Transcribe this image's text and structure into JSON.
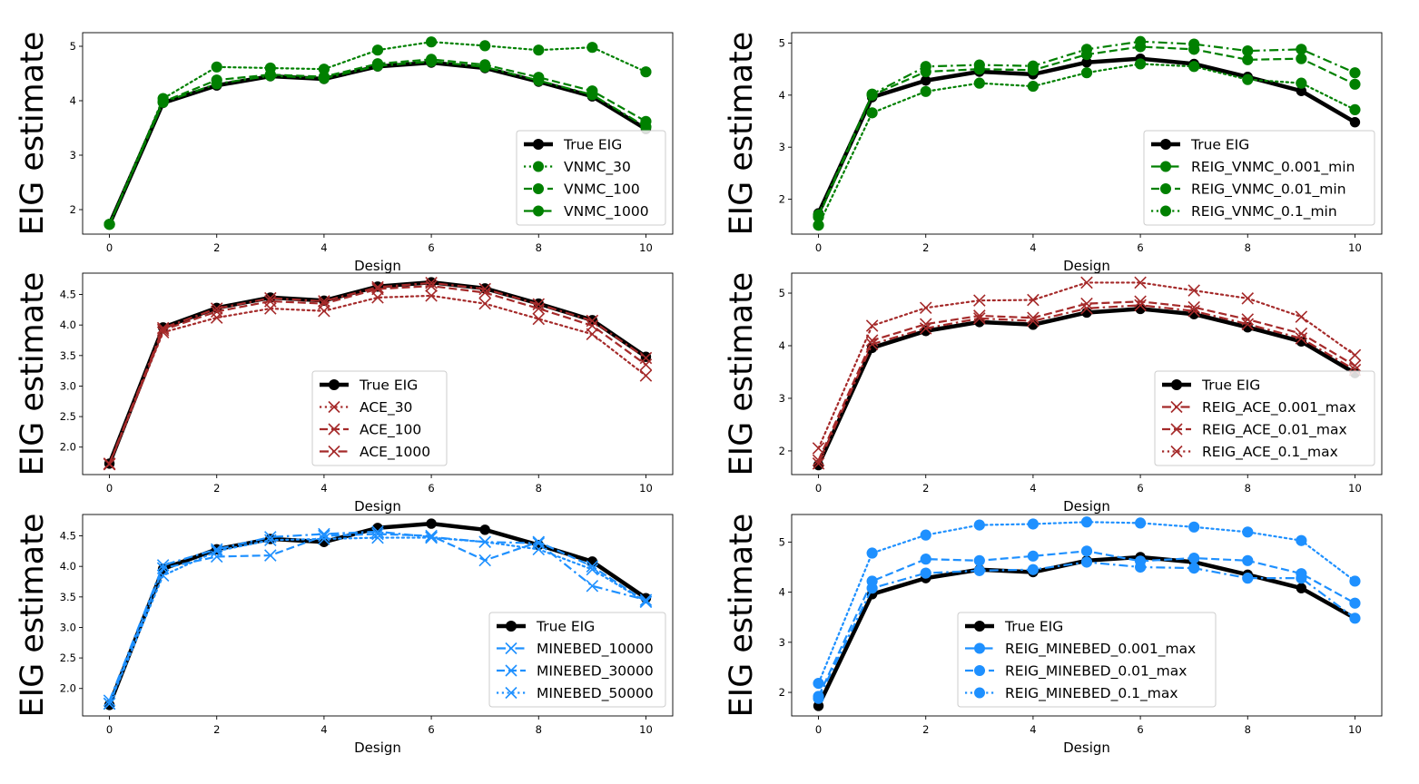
{
  "chart_data": [
    {
      "type": "line",
      "xlabel": "Design",
      "ylabel": "EIG estimate",
      "x": [
        0,
        1,
        2,
        3,
        4,
        5,
        6,
        7,
        8,
        9,
        10
      ],
      "xticks": [
        0,
        2,
        4,
        6,
        8,
        10
      ],
      "xlim": [
        -0.5,
        10.5
      ],
      "yticks": [
        2,
        3,
        4,
        5
      ],
      "ylim": [
        1.55,
        5.25
      ],
      "legend_position": "lower-right",
      "series": [
        {
          "name": "True EIG",
          "values": [
            1.73,
            3.96,
            4.28,
            4.45,
            4.4,
            4.63,
            4.7,
            4.6,
            4.35,
            4.08,
            3.48
          ],
          "color": "#000000",
          "style": "solid",
          "marker": "circle",
          "width": 4.5
        },
        {
          "name": "VNMC_30",
          "values": [
            1.73,
            4.04,
            4.62,
            4.6,
            4.58,
            4.93,
            5.08,
            5.01,
            4.93,
            4.98,
            4.53
          ],
          "color": "#008000",
          "style": "dotted",
          "marker": "circle",
          "width": 2.2
        },
        {
          "name": "VNMC_100",
          "values": [
            1.73,
            3.98,
            4.38,
            4.48,
            4.44,
            4.68,
            4.76,
            4.66,
            4.43,
            4.18,
            3.62
          ],
          "color": "#008000",
          "style": "dashed",
          "marker": "circle",
          "width": 2.2
        },
        {
          "name": "VNMC_1000",
          "values": [
            1.73,
            3.97,
            4.31,
            4.46,
            4.41,
            4.64,
            4.72,
            4.62,
            4.37,
            4.11,
            3.52
          ],
          "color": "#008000",
          "style": "dashdot",
          "marker": "circle",
          "width": 2.2
        }
      ]
    },
    {
      "type": "line",
      "xlabel": "Design",
      "ylabel": "EIG estimate",
      "x": [
        0,
        1,
        2,
        3,
        4,
        5,
        6,
        7,
        8,
        9,
        10
      ],
      "xticks": [
        0,
        2,
        4,
        6,
        8,
        10
      ],
      "xlim": [
        -0.5,
        10.5
      ],
      "yticks": [
        2,
        3,
        4,
        5
      ],
      "ylim": [
        1.33,
        5.2
      ],
      "legend_position": "lower-right",
      "series": [
        {
          "name": "True EIG",
          "values": [
            1.73,
            3.96,
            4.28,
            4.45,
            4.4,
            4.63,
            4.7,
            4.6,
            4.35,
            4.08,
            3.48
          ],
          "color": "#000000",
          "style": "solid",
          "marker": "circle",
          "width": 4.5
        },
        {
          "name": "REIG_VNMC_0.001_min",
          "values": [
            1.7,
            4.02,
            4.55,
            4.58,
            4.56,
            4.88,
            5.03,
            4.98,
            4.85,
            4.88,
            4.43
          ],
          "color": "#008000",
          "style": "dashdot",
          "marker": "circle",
          "width": 2.2
        },
        {
          "name": "REIG_VNMC_0.01_min",
          "values": [
            1.66,
            4.0,
            4.45,
            4.5,
            4.48,
            4.78,
            4.93,
            4.88,
            4.68,
            4.7,
            4.21
          ],
          "color": "#008000",
          "style": "dashed",
          "marker": "circle",
          "width": 2.2
        },
        {
          "name": "REIG_VNMC_0.1_min",
          "values": [
            1.5,
            3.66,
            4.07,
            4.23,
            4.17,
            4.43,
            4.6,
            4.55,
            4.3,
            4.23,
            3.72
          ],
          "color": "#008000",
          "style": "dotted",
          "marker": "circle",
          "width": 2.2
        }
      ]
    },
    {
      "type": "line",
      "xlabel": "Design",
      "ylabel": "EIG estimate",
      "x": [
        0,
        1,
        2,
        3,
        4,
        5,
        6,
        7,
        8,
        9,
        10
      ],
      "xticks": [
        0,
        2,
        4,
        6,
        8,
        10
      ],
      "xlim": [
        -0.5,
        10.5
      ],
      "yticks": [
        2.0,
        2.5,
        3.0,
        3.5,
        4.0,
        4.5
      ],
      "yticklabels": [
        "2.0",
        "2.5",
        "3.0",
        "3.5",
        "4.0",
        "4.5"
      ],
      "ylim": [
        1.55,
        4.85
      ],
      "legend_position": "lower-center",
      "series": [
        {
          "name": "True EIG",
          "values": [
            1.73,
            3.96,
            4.28,
            4.45,
            4.4,
            4.63,
            4.7,
            4.6,
            4.35,
            4.08,
            3.48
          ],
          "color": "#000000",
          "style": "solid",
          "marker": "circle",
          "width": 4.5
        },
        {
          "name": "ACE_30",
          "values": [
            1.72,
            3.88,
            4.12,
            4.27,
            4.23,
            4.45,
            4.48,
            4.35,
            4.1,
            3.85,
            3.17
          ],
          "color": "#a52a2a",
          "style": "dotted",
          "marker": "x",
          "width": 2.2
        },
        {
          "name": "ACE_100",
          "values": [
            1.72,
            3.92,
            4.22,
            4.39,
            4.35,
            4.59,
            4.64,
            4.53,
            4.27,
            3.99,
            3.35
          ],
          "color": "#a52a2a",
          "style": "dashed",
          "marker": "x",
          "width": 2.2
        },
        {
          "name": "ACE_1000",
          "values": [
            1.73,
            3.95,
            4.27,
            4.44,
            4.39,
            4.62,
            4.69,
            4.59,
            4.34,
            4.07,
            3.46
          ],
          "color": "#a52a2a",
          "style": "dashdot",
          "marker": "x",
          "width": 2.2
        }
      ]
    },
    {
      "type": "line",
      "xlabel": "Design",
      "ylabel": "EIG estimate",
      "x": [
        0,
        1,
        2,
        3,
        4,
        5,
        6,
        7,
        8,
        9,
        10
      ],
      "xticks": [
        0,
        2,
        4,
        6,
        8,
        10
      ],
      "xlim": [
        -0.5,
        10.5
      ],
      "yticks": [
        2,
        3,
        4,
        5
      ],
      "ylim": [
        1.55,
        5.38
      ],
      "legend_position": "lower-right",
      "series": [
        {
          "name": "True EIG",
          "values": [
            1.73,
            3.96,
            4.28,
            4.45,
            4.4,
            4.63,
            4.7,
            4.6,
            4.35,
            4.08,
            3.48
          ],
          "color": "#000000",
          "style": "solid",
          "marker": "circle",
          "width": 4.5
        },
        {
          "name": "REIG_ACE_0.001_max",
          "values": [
            1.76,
            4.03,
            4.33,
            4.52,
            4.47,
            4.71,
            4.77,
            4.66,
            4.41,
            4.14,
            3.54
          ],
          "color": "#a52a2a",
          "style": "dashdot",
          "marker": "x",
          "width": 2.2
        },
        {
          "name": "REIG_ACE_0.01_max",
          "values": [
            1.82,
            4.1,
            4.41,
            4.57,
            4.53,
            4.8,
            4.84,
            4.73,
            4.5,
            4.23,
            3.62
          ],
          "color": "#a52a2a",
          "style": "dashed",
          "marker": "x",
          "width": 2.2
        },
        {
          "name": "REIG_ACE_0.1_max",
          "values": [
            2.05,
            4.38,
            4.72,
            4.86,
            4.87,
            5.2,
            5.2,
            5.05,
            4.9,
            4.55,
            3.82
          ],
          "color": "#a52a2a",
          "style": "dotted",
          "marker": "x",
          "width": 2.2
        }
      ]
    },
    {
      "type": "line",
      "xlabel": "Design",
      "ylabel": "EIG estimate",
      "x": [
        0,
        1,
        2,
        3,
        4,
        5,
        6,
        7,
        8,
        9,
        10
      ],
      "xticks": [
        0,
        2,
        4,
        6,
        8,
        10
      ],
      "xlim": [
        -0.5,
        10.5
      ],
      "yticks": [
        2.0,
        2.5,
        3.0,
        3.5,
        4.0,
        4.5
      ],
      "yticklabels": [
        "2.0",
        "2.5",
        "3.0",
        "3.5",
        "4.0",
        "4.5"
      ],
      "ylim": [
        1.55,
        4.85
      ],
      "legend_position": "lower-right",
      "series": [
        {
          "name": "True EIG",
          "values": [
            1.73,
            3.96,
            4.28,
            4.45,
            4.4,
            4.63,
            4.7,
            4.6,
            4.35,
            4.08,
            3.48
          ],
          "color": "#000000",
          "style": "solid",
          "marker": "circle",
          "width": 4.5
        },
        {
          "name": "MINEBED_10000",
          "values": [
            1.8,
            4.02,
            4.28,
            4.48,
            4.53,
            4.57,
            4.48,
            4.4,
            4.38,
            3.68,
            3.45
          ],
          "color": "#1e90ff",
          "style": "dashdot",
          "marker": "x",
          "width": 2.2
        },
        {
          "name": "MINEBED_30000",
          "values": [
            1.75,
            3.97,
            4.16,
            4.18,
            4.5,
            4.53,
            4.5,
            4.1,
            4.4,
            4.0,
            3.42
          ],
          "color": "#1e90ff",
          "style": "dashed",
          "marker": "x",
          "width": 2.2
        },
        {
          "name": "MINEBED_50000",
          "values": [
            1.75,
            3.85,
            4.25,
            4.43,
            4.45,
            4.47,
            4.47,
            4.4,
            4.28,
            3.95,
            3.42
          ],
          "color": "#1e90ff",
          "style": "dotted",
          "marker": "x",
          "width": 2.2
        }
      ]
    },
    {
      "type": "line",
      "xlabel": "Design",
      "ylabel": "EIG estimate",
      "x": [
        0,
        1,
        2,
        3,
        4,
        5,
        6,
        7,
        8,
        9,
        10
      ],
      "xticks": [
        0,
        2,
        4,
        6,
        8,
        10
      ],
      "xlim": [
        -0.5,
        10.5
      ],
      "yticks": [
        2,
        3,
        4,
        5
      ],
      "ylim": [
        1.53,
        5.55
      ],
      "legend_position": "lower-center",
      "series": [
        {
          "name": "True EIG",
          "values": [
            1.73,
            3.96,
            4.28,
            4.45,
            4.4,
            4.63,
            4.7,
            4.6,
            4.35,
            4.08,
            3.48
          ],
          "color": "#000000",
          "style": "solid",
          "marker": "circle",
          "width": 4.5
        },
        {
          "name": "REIG_MINEBED_0.001_max",
          "values": [
            1.88,
            4.08,
            4.38,
            4.43,
            4.45,
            4.6,
            4.5,
            4.48,
            4.28,
            4.28,
            3.48
          ],
          "color": "#1e90ff",
          "style": "dashdot",
          "marker": "circle",
          "width": 2.2
        },
        {
          "name": "REIG_MINEBED_0.01_max",
          "values": [
            1.92,
            4.22,
            4.66,
            4.63,
            4.72,
            4.82,
            4.62,
            4.68,
            4.63,
            4.37,
            3.78
          ],
          "color": "#1e90ff",
          "style": "dashed",
          "marker": "circle",
          "width": 2.2
        },
        {
          "name": "REIG_MINEBED_0.1_max",
          "values": [
            2.18,
            4.78,
            5.14,
            5.34,
            5.36,
            5.4,
            5.38,
            5.3,
            5.2,
            5.03,
            4.22
          ],
          "color": "#1e90ff",
          "style": "dotted",
          "marker": "circle",
          "width": 2.2
        }
      ]
    }
  ]
}
